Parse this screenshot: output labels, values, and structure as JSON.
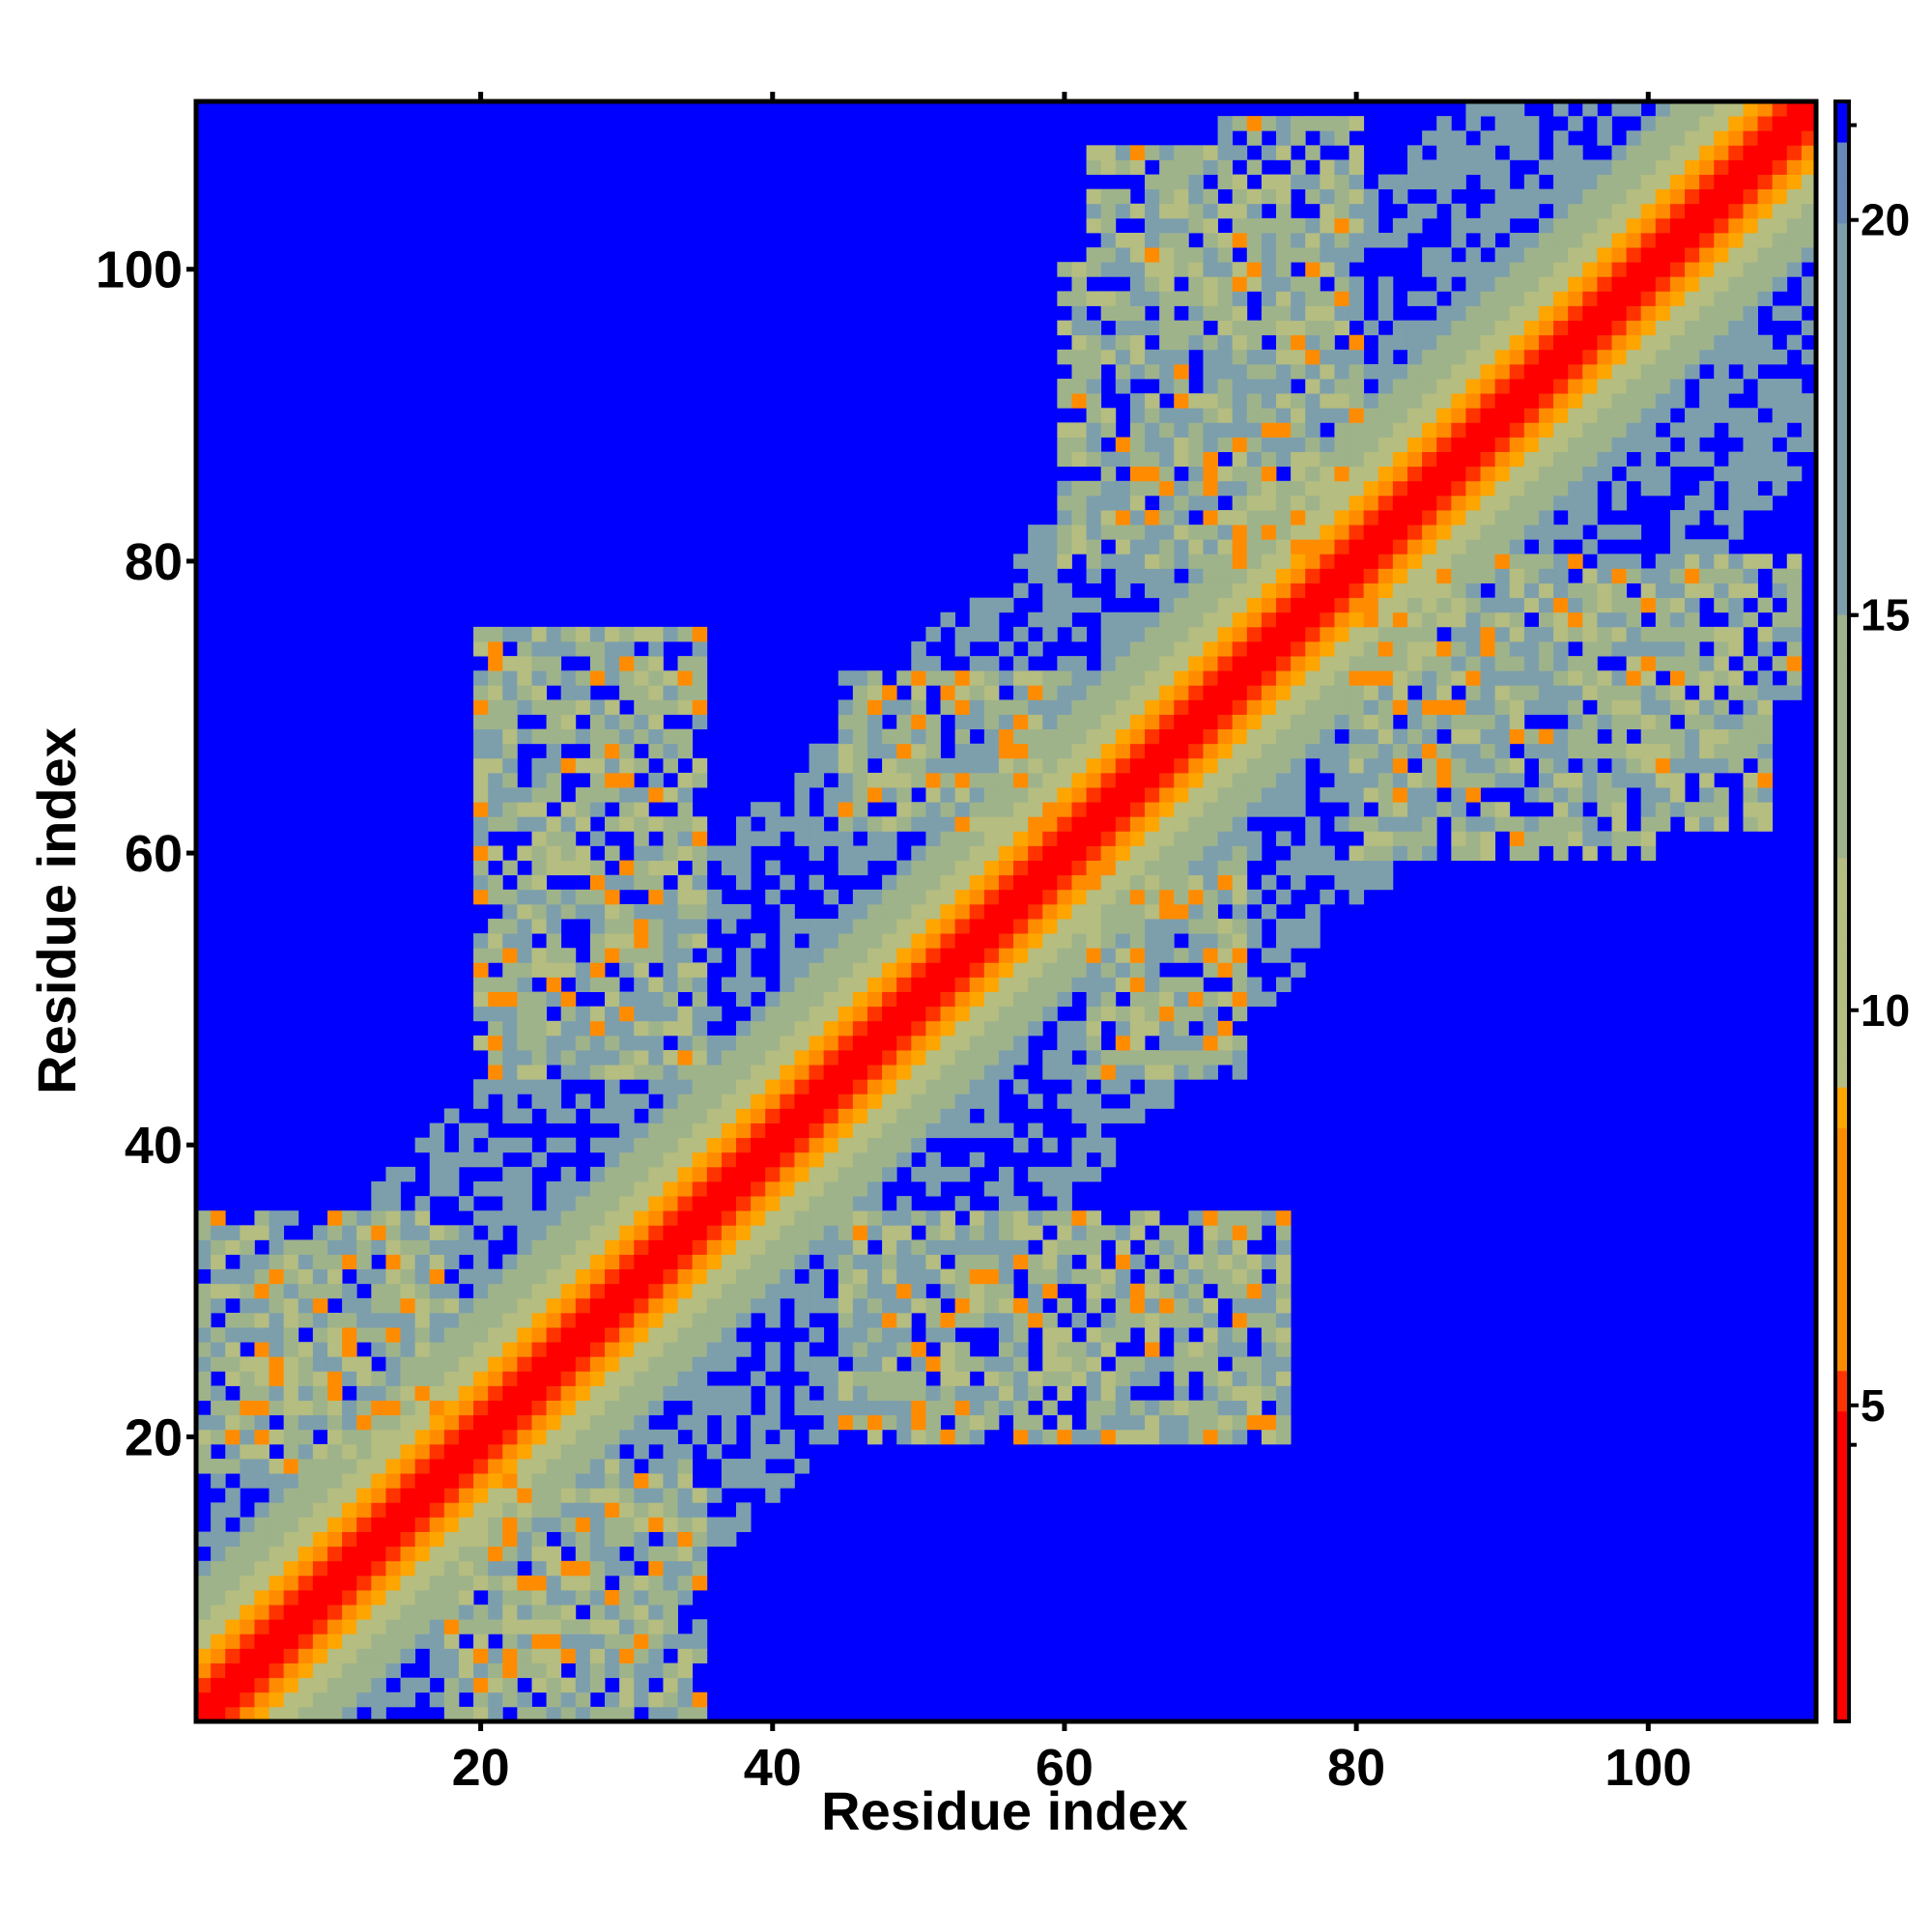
{
  "chart_data": {
    "type": "heatmap",
    "title": "",
    "xlabel": "Residue index",
    "ylabel": "Residue index",
    "n_residues": 111,
    "xlim": [
      1,
      111
    ],
    "ylim": [
      1,
      111
    ],
    "x_ticks": [
      "20",
      "40",
      "60",
      "80",
      "100"
    ],
    "y_ticks": [
      "20",
      "40",
      "60",
      "80",
      "100"
    ],
    "colorbar": {
      "ticks": [
        "5",
        "10",
        "15",
        "20"
      ],
      "range": [
        1,
        21.5
      ],
      "palette": [
        "#ff0000",
        "#ff3300",
        "#ff8c00",
        "#ffa500",
        "#b5bd80",
        "#9fb38a",
        "#7d9fac",
        "#6689b8",
        "#0000ff"
      ],
      "stops": [
        1.0,
        5.0,
        5.5,
        8.5,
        9.0,
        12.0,
        15.0,
        20.0,
        21.0
      ]
    },
    "cutoff_color": "#0000ff",
    "values_description_note": "",
    "contact_regions": [
      {
        "x": [
          1,
          111
        ],
        "y": [
          1,
          111
        ],
        "kind": "diagonal"
      },
      {
        "x": [
          1,
          18
        ],
        "y": [
          18,
          35
        ],
        "kind": "block"
      },
      {
        "x": [
          20,
          35
        ],
        "y": [
          45,
          75
        ],
        "kind": "block"
      },
      {
        "x": [
          45,
          60
        ],
        "y": [
          20,
          30
        ],
        "kind": "block"
      },
      {
        "x": [
          62,
          72
        ],
        "y": [
          45,
          60
        ],
        "kind": "block"
      },
      {
        "x": [
          62,
          80
        ],
        "y": [
          80,
          108
        ],
        "kind": "block"
      },
      {
        "x": [
          80,
          100
        ],
        "y": [
          60,
          75
        ],
        "kind": "block"
      },
      {
        "x": [
          85,
          110
        ],
        "y": [
          70,
          80
        ],
        "kind": "block"
      }
    ]
  }
}
